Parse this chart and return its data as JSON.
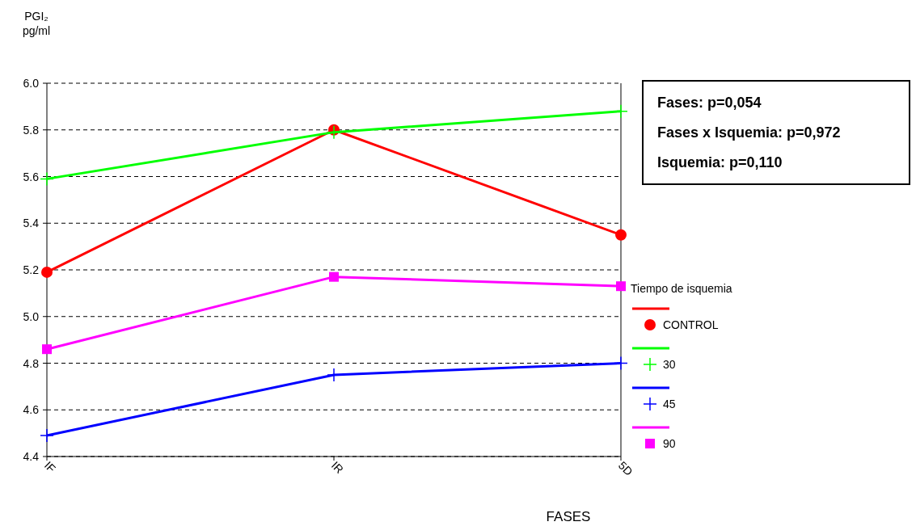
{
  "chart_data": {
    "type": "line",
    "ylabel": "PGI₂ pg/ml",
    "xlabel": "FASES",
    "legend_title": "Tiempo de isquemia",
    "legend": "right",
    "grid": "y",
    "line_style": "solid",
    "categories": [
      "IF",
      "IR",
      "5D"
    ],
    "ylim": [
      4.4,
      6.0
    ],
    "yticks": [
      {
        "value": 4.4,
        "label": "4.4"
      },
      {
        "value": 4.6,
        "label": "4.6"
      },
      {
        "value": 4.8,
        "label": "4.8"
      },
      {
        "value": 5.0,
        "label": "5.0"
      },
      {
        "value": 5.2,
        "label": "5.2"
      },
      {
        "value": 5.4,
        "label": "5.4"
      },
      {
        "value": 5.6,
        "label": "5.6"
      },
      {
        "value": 5.8,
        "label": "5.8"
      },
      {
        "value": 6.0,
        "label": "6.0"
      }
    ],
    "series": [
      {
        "name": "CONTROL",
        "color": "#ff0000",
        "marker": "circle",
        "values": [
          5.19,
          5.8,
          5.35
        ]
      },
      {
        "name": "30",
        "color": "#00ff00",
        "marker": "cross",
        "values": [
          5.59,
          5.79,
          5.88
        ]
      },
      {
        "name": "45",
        "color": "#0000ff",
        "marker": "cross",
        "values": [
          4.49,
          4.75,
          4.8
        ]
      },
      {
        "name": "90",
        "color": "#ff00ff",
        "marker": "square",
        "values": [
          4.86,
          5.17,
          5.13
        ]
      }
    ],
    "annotations": [
      "Fases: p=0,054",
      "Fases x Isquemia: p=0,972",
      "Isquemia: p=0,110"
    ]
  }
}
